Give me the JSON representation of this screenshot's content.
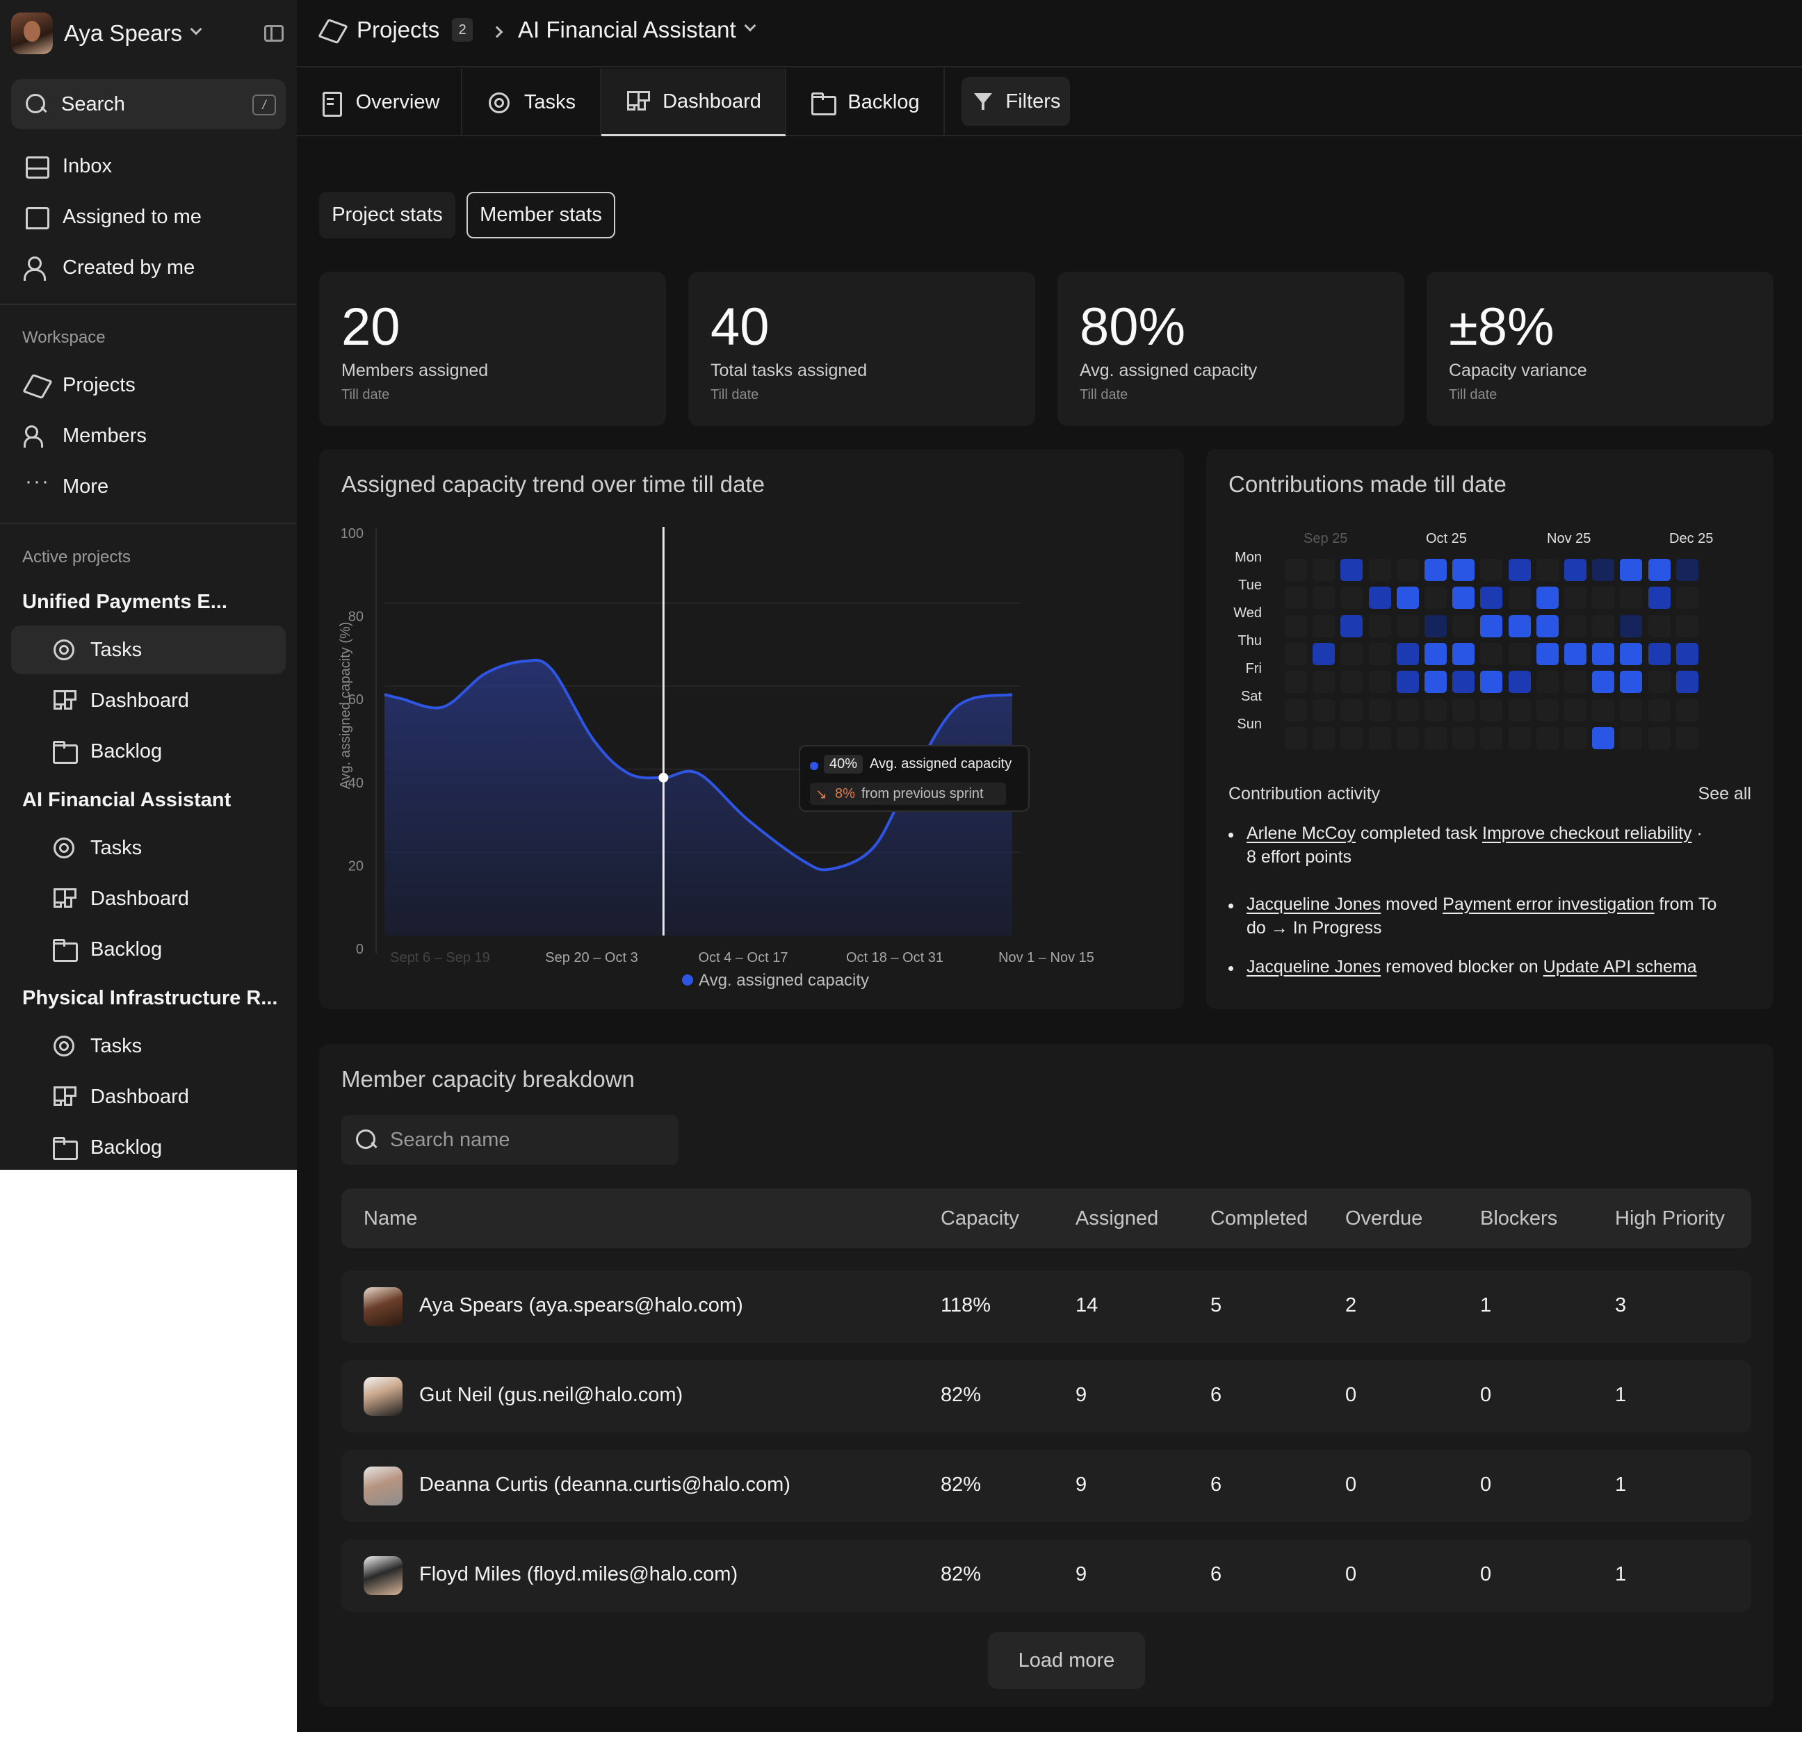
{
  "sidebar": {
    "user_name": "Aya Spears",
    "search_label": "Search",
    "search_shortcut": "/",
    "nav": [
      "Inbox",
      "Assigned to me",
      "Created by me"
    ],
    "workspace_heading": "Workspace",
    "workspace": [
      "Projects",
      "Members",
      "More"
    ],
    "active_heading": "Active projects",
    "projects": [
      {
        "name": "Unified Payments E...",
        "items": [
          "Tasks",
          "Dashboard",
          "Backlog"
        ]
      },
      {
        "name": "AI Financial Assistant",
        "items": [
          "Tasks",
          "Dashboard",
          "Backlog"
        ]
      },
      {
        "name": "Physical Infrastructure R...",
        "items": [
          "Tasks",
          "Dashboard",
          "Backlog"
        ]
      }
    ]
  },
  "header": {
    "projects_label": "Projects",
    "projects_count": "2",
    "current_project": "AI Financial Assistant"
  },
  "tabs": [
    "Overview",
    "Tasks",
    "Dashboard",
    "Backlog"
  ],
  "filters_label": "Filters",
  "segments": [
    "Project stats",
    "Member stats"
  ],
  "stats": [
    {
      "value": "20",
      "label": "Members assigned",
      "sub": "Till date"
    },
    {
      "value": "40",
      "label": "Total tasks assigned",
      "sub": "Till date"
    },
    {
      "value": "80%",
      "label": "Avg. assigned capacity",
      "sub": "Till date"
    },
    {
      "value": "±8%",
      "label": "Capacity variance",
      "sub": "Till date"
    }
  ],
  "trend": {
    "title": "Assigned capacity trend over time till date",
    "tooltip": {
      "value": "40%",
      "label": "Avg. assigned capacity",
      "delta": "8%",
      "delta_label": "from previous sprint"
    }
  },
  "chart_data": {
    "type": "area",
    "title": "Assigned capacity trend over time till date",
    "ylabel": "Avg. assigned capacity (%)",
    "ylim": [
      0,
      100
    ],
    "yticks": [
      "100",
      "80",
      "60",
      "40",
      "20",
      "0"
    ],
    "categories": [
      "Sept 6 – Sep 19",
      "Sep 20 – Oct 3",
      "Oct 4 – Oct 17",
      "Oct 18 – Oct 31",
      "Nov 1 – Nov 15"
    ],
    "series": [
      {
        "name": "Avg. assigned capacity",
        "color": "#2f55e4",
        "x": [
          0,
          0.12,
          0.42,
          0.72,
          1.0,
          1.2,
          1.5,
          1.75,
          2.0,
          2.25,
          2.6,
          3.0,
          3.2,
          3.5,
          3.75,
          4.1,
          4.5
        ],
        "values": [
          61,
          60,
          58,
          66,
          69,
          67,
          50,
          42,
          41,
          42,
          31,
          21,
          19,
          24,
          39,
          58,
          61
        ]
      }
    ],
    "grid": true,
    "legend": "bottom"
  },
  "contrib": {
    "title": "Contributions made till date",
    "months": [
      "Sep 25",
      "Oct 25",
      "Nov 25",
      "Dec 25"
    ],
    "days": [
      "Mon",
      "Tue",
      "Wed",
      "Thu",
      "Fri",
      "Sat",
      "Sun"
    ],
    "grid": [
      [
        0,
        0,
        2,
        0,
        0,
        3,
        3,
        0,
        2,
        0,
        2,
        1,
        3,
        3,
        1
      ],
      [
        0,
        0,
        0,
        2,
        3,
        0,
        3,
        2,
        0,
        3,
        0,
        0,
        0,
        2,
        0
      ],
      [
        0,
        0,
        2,
        0,
        0,
        1,
        0,
        3,
        3,
        3,
        0,
        0,
        1,
        0,
        0
      ],
      [
        0,
        2,
        0,
        0,
        2,
        3,
        3,
        0,
        0,
        3,
        3,
        3,
        3,
        2,
        2
      ],
      [
        0,
        0,
        0,
        0,
        2,
        3,
        2,
        3,
        2,
        0,
        0,
        3,
        3,
        0,
        2
      ],
      [
        0,
        0,
        0,
        0,
        0,
        0,
        0,
        0,
        0,
        0,
        0,
        0,
        0,
        0,
        0
      ],
      [
        0,
        0,
        0,
        0,
        0,
        0,
        0,
        0,
        0,
        0,
        0,
        3,
        0,
        0,
        0
      ]
    ],
    "activity_heading": "Contribution activity",
    "see_all": "See all",
    "activities": [
      {
        "actor": "Arlene McCoy",
        "verb": " completed task ",
        "target": "Improve checkout reliability",
        "rest": " ·",
        "line2": "8 effort points"
      },
      {
        "actor": "Jacqueline Jones",
        "verb": " moved ",
        "target": "Payment error investigation",
        "rest": " from To",
        "line2": "do → In Progress"
      },
      {
        "actor": "Jacqueline Jones",
        "verb": " removed blocker on ",
        "target": "Update API schema",
        "rest": "",
        "line2": ""
      }
    ]
  },
  "members": {
    "title": "Member capacity breakdown",
    "search_placeholder": "Search name",
    "columns": [
      "Name",
      "Capacity",
      "Assigned",
      "Completed",
      "Overdue",
      "Blockers",
      "High Priority"
    ],
    "rows": [
      {
        "name": "Aya Spears (aya.spears@halo.com)",
        "capacity": "118%",
        "assigned": "14",
        "completed": "5",
        "overdue": "2",
        "blockers": "1",
        "high": "3"
      },
      {
        "name": "Gut Neil (gus.neil@halo.com)",
        "capacity": "82%",
        "assigned": "9",
        "completed": "6",
        "overdue": "0",
        "blockers": "0",
        "high": "1"
      },
      {
        "name": "Deanna Curtis (deanna.curtis@halo.com)",
        "capacity": "82%",
        "assigned": "9",
        "completed": "6",
        "overdue": "0",
        "blockers": "0",
        "high": "1"
      },
      {
        "name": "Floyd Miles (floyd.miles@halo.com)",
        "capacity": "82%",
        "assigned": "9",
        "completed": "6",
        "overdue": "0",
        "blockers": "0",
        "high": "1"
      }
    ],
    "load_more": "Load more"
  },
  "colors": {
    "accent": "#2f55e4",
    "bg": "#131313",
    "panel": "#1a1a1a"
  }
}
